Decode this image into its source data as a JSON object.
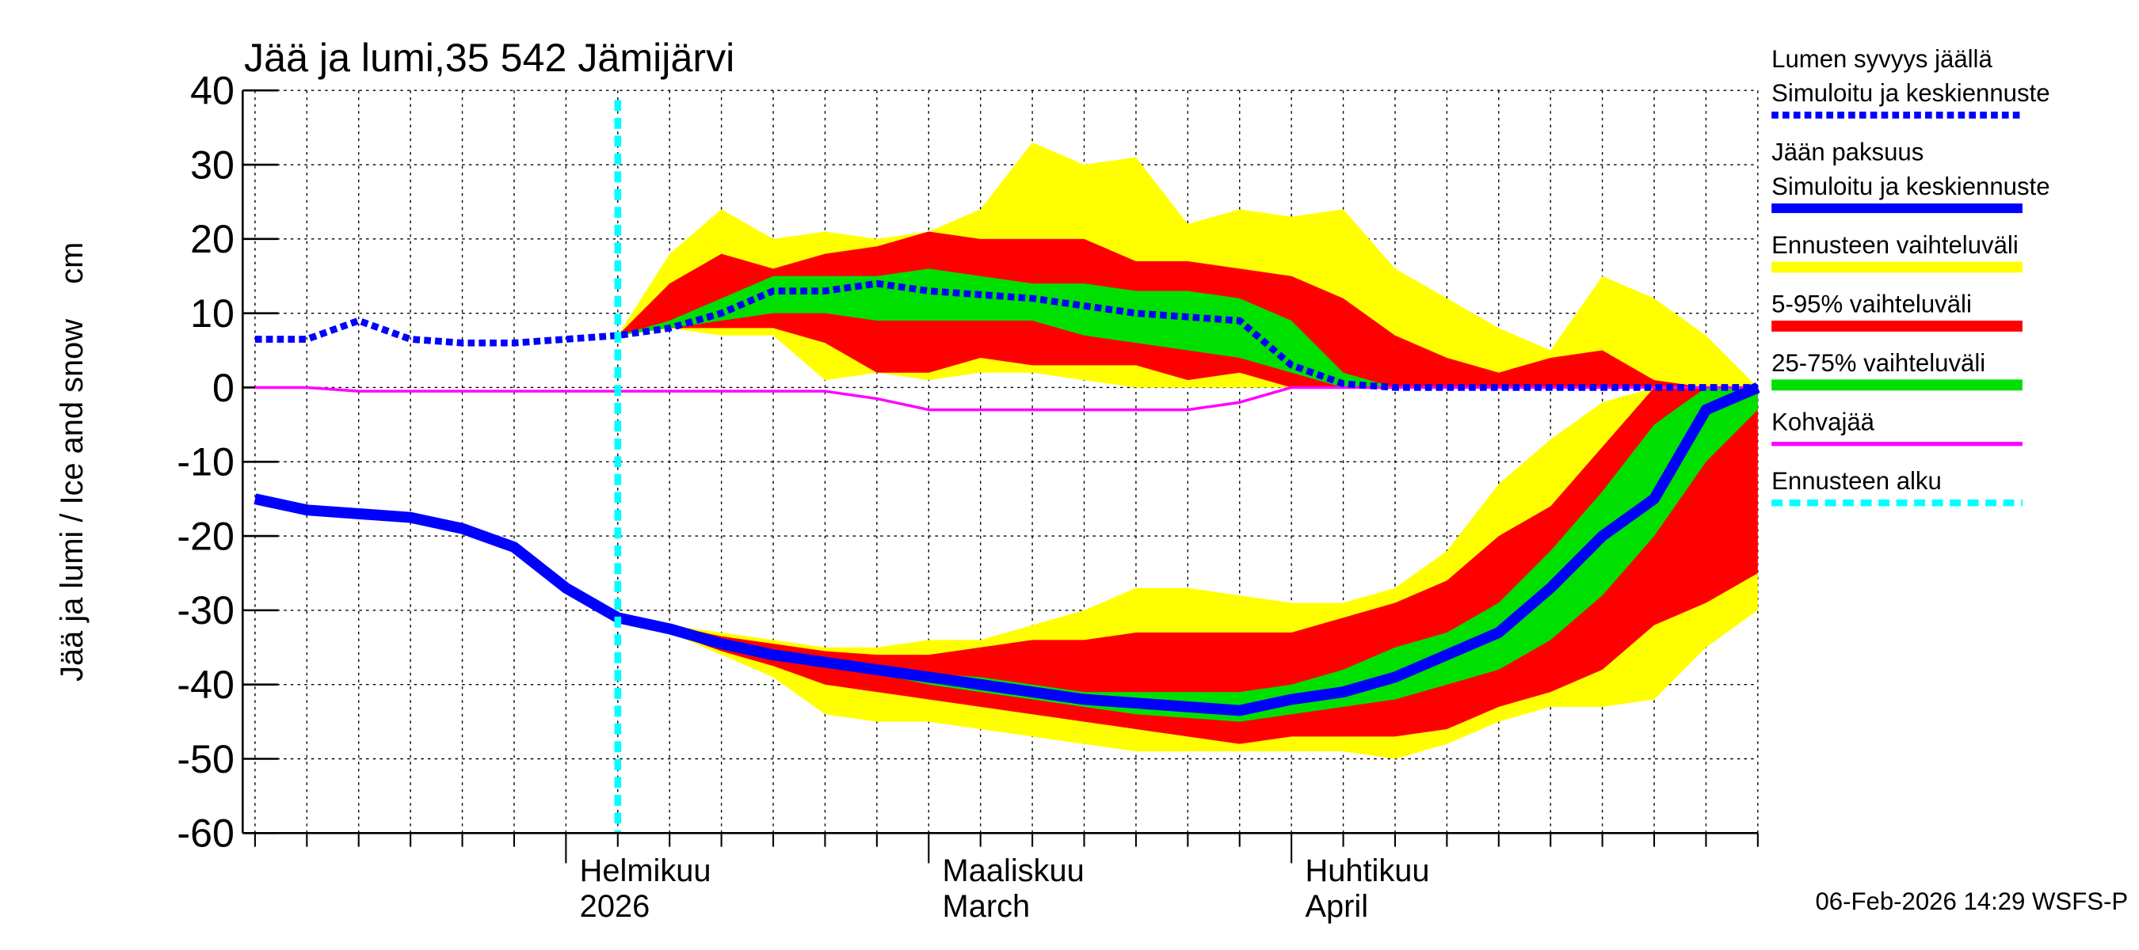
{
  "chart_data": {
    "type": "line",
    "title": "Jää ja lumi,35 542 Jämijärvi",
    "y_label": "Jää ja lumi / Ice and snow    cm",
    "footer": "06-Feb-2026 14:29 WSFS-P",
    "categories": [
      null,
      null,
      null,
      null,
      null,
      null,
      [
        "Helmikuu",
        "2026"
      ],
      null,
      null,
      null,
      null,
      null,
      null,
      [
        "Maaliskuu",
        "March"
      ],
      null,
      null,
      null,
      null,
      null,
      null,
      [
        "Huhtikuu",
        "April"
      ],
      null,
      null,
      null,
      null,
      null,
      null,
      null,
      null,
      null
    ],
    "ylim": [
      -60,
      40
    ],
    "yticks": [
      -60,
      -50,
      -40,
      -30,
      -20,
      -10,
      0,
      10,
      20,
      30,
      40
    ],
    "grid": true,
    "series": [
      {
        "name": [
          "Lumen syvyys jäällä",
          "Simuloitu ja keskiennuste"
        ],
        "color": "#0000ff",
        "style": "dotted",
        "values": [
          6.5,
          6.5,
          9,
          6.5,
          6,
          6,
          6.5,
          7,
          8,
          10,
          13,
          13,
          14,
          13,
          12.5,
          12,
          11,
          10,
          9.5,
          9,
          3,
          0.5,
          0,
          0,
          0,
          0,
          0,
          0,
          0,
          0
        ]
      },
      {
        "name": [
          "Jään paksuus",
          "Simuloitu ja keskiennuste"
        ],
        "color": "#0000ff",
        "style": "solid",
        "values": [
          -15,
          -16.5,
          -17,
          -17.5,
          -19,
          -21.5,
          -27,
          -31,
          -32.5,
          -34.5,
          -36,
          -37,
          -38,
          -39,
          -40,
          -41,
          -42,
          -42.5,
          -43,
          -43.5,
          -42,
          -41,
          -39,
          -36,
          -33,
          -27,
          -20,
          -15,
          -3,
          0
        ]
      },
      {
        "name": [
          "Kohvajää"
        ],
        "color": "#ff00ff",
        "style": "thin",
        "values": [
          0,
          0,
          -0.5,
          -0.5,
          -0.5,
          -0.5,
          -0.5,
          -0.5,
          -0.5,
          -0.5,
          -0.5,
          -0.5,
          -1.5,
          -3,
          -3,
          -3,
          -3,
          -3,
          -3,
          -2,
          0,
          0,
          0,
          0,
          0,
          0,
          0,
          0,
          0,
          0
        ]
      }
    ],
    "bands": [
      {
        "name": "Ennusteen vaihteluväli",
        "color": "#ffff00",
        "snow_high": [
          null,
          null,
          null,
          null,
          null,
          null,
          null,
          7,
          18,
          24,
          20,
          21,
          20,
          21,
          24,
          33,
          30,
          31,
          22,
          24,
          23,
          24,
          16,
          12,
          8,
          5,
          15,
          12,
          7,
          0
        ],
        "snow_low": [
          null,
          null,
          null,
          null,
          null,
          null,
          null,
          7,
          8,
          7,
          7,
          1,
          2,
          1,
          2,
          2,
          1,
          0,
          0,
          0,
          0,
          0,
          0,
          0,
          0,
          0,
          0,
          0,
          0,
          0
        ],
        "ice_high": [
          null,
          null,
          null,
          null,
          null,
          null,
          null,
          -31,
          -32,
          -33,
          -34,
          -35,
          -35,
          -34,
          -34,
          -32,
          -30,
          -27,
          -27,
          -28,
          -29,
          -29,
          -27,
          -22,
          -13,
          -7,
          -2,
          0,
          0,
          0
        ],
        "ice_low": [
          null,
          null,
          null,
          null,
          null,
          null,
          null,
          -31,
          -33,
          -36,
          -39,
          -44,
          -45,
          -45,
          -46,
          -47,
          -48,
          -49,
          -49,
          -49,
          -49,
          -49,
          -50,
          -48,
          -45,
          -43,
          -43,
          -42,
          -35,
          -30
        ]
      },
      {
        "name": "5-95% vaihteluväli",
        "color": "#ff0000",
        "snow_high": [
          null,
          null,
          null,
          null,
          null,
          null,
          null,
          7,
          14,
          18,
          16,
          18,
          19,
          21,
          20,
          20,
          20,
          17,
          17,
          16,
          15,
          12,
          7,
          4,
          2,
          4,
          5,
          1,
          0,
          0
        ],
        "snow_low": [
          null,
          null,
          null,
          null,
          null,
          null,
          null,
          7,
          8,
          8,
          8,
          6,
          2,
          2,
          4,
          3,
          3,
          3,
          1,
          2,
          0,
          0,
          0,
          0,
          0,
          0,
          0,
          0,
          0,
          0
        ],
        "ice_high": [
          null,
          null,
          null,
          null,
          null,
          null,
          null,
          -31,
          -32,
          -33.5,
          -34.5,
          -35.5,
          -36,
          -36,
          -35,
          -34,
          -34,
          -33,
          -33,
          -33,
          -33,
          -31,
          -29,
          -26,
          -20,
          -16,
          -8,
          0,
          0,
          0
        ],
        "ice_low": [
          null,
          null,
          null,
          null,
          null,
          null,
          null,
          -31,
          -33,
          -35.5,
          -37.5,
          -40,
          -41,
          -42,
          -43,
          -44,
          -45,
          -46,
          -47,
          -48,
          -47,
          -47,
          -47,
          -46,
          -43,
          -41,
          -38,
          -32,
          -29,
          -25
        ]
      },
      {
        "name": "25-75% vaihteluväli",
        "color": "#00e000",
        "snow_high": [
          null,
          null,
          null,
          null,
          null,
          null,
          null,
          7,
          9,
          12,
          15,
          15,
          15,
          16,
          15,
          14,
          14,
          13,
          13,
          12,
          9,
          2,
          0,
          0,
          0,
          0,
          0,
          0,
          0,
          0
        ],
        "snow_low": [
          null,
          null,
          null,
          null,
          null,
          null,
          null,
          7,
          8,
          9,
          10,
          10,
          9,
          9,
          9,
          9,
          7,
          6,
          5,
          4,
          2,
          0,
          0,
          0,
          0,
          0,
          0,
          0,
          0,
          0
        ],
        "ice_high": [
          null,
          null,
          null,
          null,
          null,
          null,
          null,
          -31,
          -32.5,
          -34,
          -35.5,
          -36.5,
          -37.5,
          -38.5,
          -39,
          -40,
          -41,
          -41,
          -41,
          -41,
          -40,
          -38,
          -35,
          -33,
          -29,
          -22,
          -14,
          -5,
          0,
          0
        ],
        "ice_low": [
          null,
          null,
          null,
          null,
          null,
          null,
          null,
          -31,
          -33,
          -35,
          -36.5,
          -37.5,
          -38.5,
          -40,
          -41,
          -42,
          -43,
          -44,
          -44.5,
          -45,
          -44,
          -43,
          -42,
          -40,
          -38,
          -34,
          -28,
          -20,
          -10,
          -3
        ]
      }
    ],
    "forecast_start": {
      "name": "Ennusteen alku",
      "color": "#00ffff"
    }
  }
}
